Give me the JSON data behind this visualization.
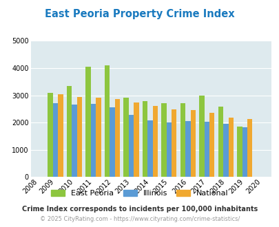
{
  "title": "East Peoria Property Crime Index",
  "years": [
    2008,
    2009,
    2010,
    2011,
    2012,
    2013,
    2014,
    2015,
    2016,
    2017,
    2018,
    2019,
    2020
  ],
  "data_years": [
    2009,
    2010,
    2011,
    2012,
    2013,
    2014,
    2015,
    2016,
    2017,
    2018,
    2019
  ],
  "east_peoria": [
    3100,
    3350,
    4060,
    4100,
    2920,
    2780,
    2720,
    2700,
    3000,
    2580,
    1850
  ],
  "illinois": [
    2700,
    2650,
    2680,
    2560,
    2290,
    2090,
    2010,
    2060,
    2040,
    1950,
    1840
  ],
  "national": [
    3040,
    2950,
    2920,
    2870,
    2740,
    2600,
    2490,
    2450,
    2350,
    2190,
    2130
  ],
  "ylim": [
    0,
    5000
  ],
  "yticks": [
    0,
    1000,
    2000,
    3000,
    4000,
    5000
  ],
  "color_east_peoria": "#8dc63f",
  "color_illinois": "#5b9bd5",
  "color_national": "#f0a830",
  "bg_color": "#deeaee",
  "grid_color": "#ffffff",
  "title_color": "#1a7abf",
  "subtitle": "Crime Index corresponds to incidents per 100,000 inhabitants",
  "subtitle_color": "#333333",
  "footer": "© 2025 CityRating.com - https://www.cityrating.com/crime-statistics/",
  "footer_color": "#999999",
  "legend_labels": [
    "East Peoria",
    "Illinois",
    "National"
  ]
}
